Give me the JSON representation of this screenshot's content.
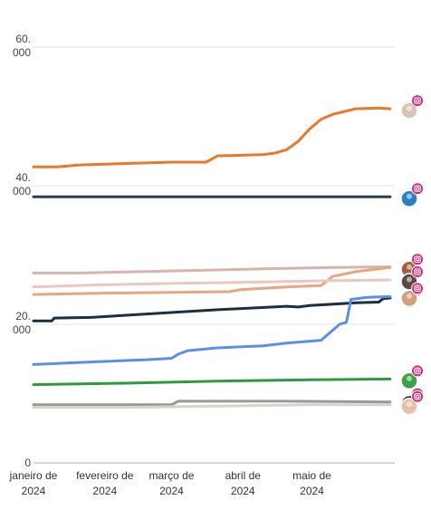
{
  "chart_data": {
    "type": "line",
    "title": "",
    "xlabel": "",
    "ylabel": "",
    "ylim": [
      0,
      60000
    ],
    "y_ticks": [
      {
        "value": 60000,
        "label": [
          "60.",
          "000"
        ]
      },
      {
        "value": 40000,
        "label": [
          "40.",
          "000"
        ]
      },
      {
        "value": 20000,
        "label": [
          "20.",
          "000"
        ]
      },
      {
        "value": 0,
        "label": [
          "0"
        ]
      }
    ],
    "x_ticks": [
      {
        "x": 0,
        "label": [
          "janeiro de",
          "2024"
        ]
      },
      {
        "x": 31,
        "label": [
          "fevereiro de",
          "2024"
        ]
      },
      {
        "x": 60,
        "label": [
          "março de",
          "2024"
        ]
      },
      {
        "x": 91,
        "label": [
          "abril de",
          "2024"
        ]
      },
      {
        "x": 121,
        "label": [
          "maio de",
          "2024"
        ]
      }
    ],
    "x_range": [
      0,
      157
    ],
    "grid": "horizontal",
    "legend": "right-end markers with avatar and instagram badge",
    "series": [
      {
        "color": "#e8782a",
        "avatar_color": "#d9c2b6",
        "points": [
          [
            0,
            42700
          ],
          [
            10,
            42700
          ],
          [
            20,
            43000
          ],
          [
            40,
            43200
          ],
          [
            60,
            43400
          ],
          [
            75,
            43400
          ],
          [
            80,
            44300
          ],
          [
            100,
            44500
          ],
          [
            105,
            44700
          ],
          [
            110,
            45200
          ],
          [
            115,
            46400
          ],
          [
            120,
            48200
          ],
          [
            125,
            49600
          ],
          [
            130,
            50300
          ],
          [
            140,
            51100
          ],
          [
            150,
            51200
          ],
          [
            155,
            51100
          ]
        ]
      },
      {
        "color": "#2b3d52",
        "avatar_color": "#2a7fc4",
        "points": [
          [
            0,
            38400
          ],
          [
            40,
            38400
          ],
          [
            80,
            38400
          ],
          [
            120,
            38400
          ],
          [
            155,
            38400
          ]
        ]
      },
      {
        "color": "#d4b5ae",
        "avatar_color": "#7a5a4e",
        "points": [
          [
            0,
            27400
          ],
          [
            20,
            27400
          ],
          [
            60,
            27700
          ],
          [
            100,
            28000
          ],
          [
            130,
            28200
          ],
          [
            155,
            28300
          ]
        ]
      },
      {
        "color": "#e8a57f",
        "avatar_color": "#a06040",
        "points": [
          [
            0,
            24300
          ],
          [
            30,
            24500
          ],
          [
            60,
            24600
          ],
          [
            85,
            24700
          ],
          [
            90,
            25000
          ],
          [
            110,
            25400
          ],
          [
            125,
            25600
          ],
          [
            130,
            26900
          ],
          [
            140,
            27600
          ],
          [
            155,
            28200
          ]
        ]
      },
      {
        "color": "#e8c8bf",
        "avatar_color": "#5c4a44",
        "points": [
          [
            0,
            25400
          ],
          [
            30,
            25700
          ],
          [
            60,
            25900
          ],
          [
            100,
            26100
          ],
          [
            130,
            26300
          ],
          [
            155,
            26400
          ]
        ]
      },
      {
        "color": "#1c2f40",
        "avatar_color": "#4a5a48",
        "points": [
          [
            0,
            20500
          ],
          [
            8,
            20500
          ],
          [
            9,
            20900
          ],
          [
            25,
            21000
          ],
          [
            50,
            21500
          ],
          [
            80,
            22100
          ],
          [
            110,
            22600
          ],
          [
            115,
            22500
          ],
          [
            120,
            22700
          ],
          [
            140,
            23100
          ],
          [
            150,
            23200
          ],
          [
            152,
            23700
          ],
          [
            155,
            23800
          ]
        ]
      },
      {
        "color": "#5b8ee6",
        "avatar_color": "#d2a080",
        "points": [
          [
            0,
            14200
          ],
          [
            20,
            14500
          ],
          [
            50,
            14900
          ],
          [
            60,
            15100
          ],
          [
            63,
            15700
          ],
          [
            67,
            16200
          ],
          [
            80,
            16600
          ],
          [
            100,
            16900
          ],
          [
            110,
            17300
          ],
          [
            125,
            17700
          ],
          [
            133,
            20000
          ],
          [
            136,
            20300
          ],
          [
            138,
            23600
          ],
          [
            145,
            23900
          ],
          [
            155,
            24000
          ]
        ]
      },
      {
        "color": "#2d9a43",
        "avatar_color": "#3fa04a",
        "points": [
          [
            0,
            11300
          ],
          [
            40,
            11500
          ],
          [
            80,
            11800
          ],
          [
            120,
            12000
          ],
          [
            155,
            12100
          ]
        ]
      },
      {
        "color": "#9a9a95",
        "avatar_color": "#222222",
        "points": [
          [
            0,
            8400
          ],
          [
            60,
            8400
          ],
          [
            63,
            8900
          ],
          [
            80,
            8900
          ],
          [
            110,
            8900
          ],
          [
            155,
            8800
          ]
        ]
      },
      {
        "color": "#d6d2cc",
        "avatar_color": "#e6c2a8",
        "points": [
          [
            0,
            8000
          ],
          [
            40,
            8000
          ],
          [
            80,
            8200
          ],
          [
            120,
            8400
          ],
          [
            155,
            8400
          ]
        ]
      }
    ]
  }
}
